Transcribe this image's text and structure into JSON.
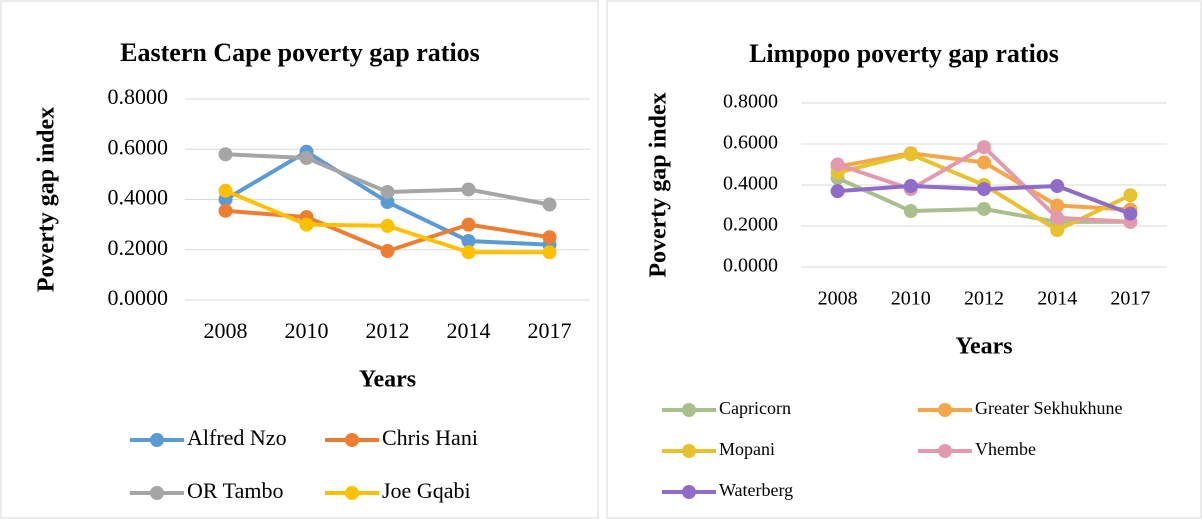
{
  "chart_data": [
    {
      "type": "line",
      "title": "Eastern Cape poverty gap ratios",
      "ylabel": "Poverty gap index",
      "xlabel": "Years",
      "categories": [
        "2008",
        "2010",
        "2012",
        "2014",
        "2017"
      ],
      "ylim": [
        0,
        0.8
      ],
      "yticks": [
        {
          "value": 0,
          "label": "0.0000"
        },
        {
          "value": 0.2,
          "label": "0.2000"
        },
        {
          "value": 0.4,
          "label": "0.4000"
        },
        {
          "value": 0.6,
          "label": "0.6000"
        },
        {
          "value": 0.8,
          "label": "0.8000"
        }
      ],
      "grid": true,
      "legend": "bottom",
      "series": [
        {
          "name": "Alfred Nzo",
          "color": "#5b9bd5",
          "values": [
            0.4,
            0.59,
            0.39,
            0.235,
            0.22
          ]
        },
        {
          "name": "Chris Hani",
          "color": "#ed7d31",
          "values": [
            0.355,
            0.33,
            0.195,
            0.3,
            0.25
          ]
        },
        {
          "name": "OR Tambo",
          "color": "#a5a5a5",
          "values": [
            0.58,
            0.565,
            0.43,
            0.44,
            0.38
          ]
        },
        {
          "name": "Joe Gqabi",
          "color": "#ffc000",
          "values": [
            0.435,
            0.3,
            0.295,
            0.19,
            0.19
          ]
        }
      ]
    },
    {
      "type": "line",
      "title": "Limpopo poverty gap ratios",
      "ylabel": "Poverty gap index",
      "xlabel": "Years",
      "categories": [
        "2008",
        "2010",
        "2012",
        "2014",
        "2017"
      ],
      "ylim": [
        0,
        0.8
      ],
      "yticks": [
        {
          "value": 0,
          "label": "0.0000"
        },
        {
          "value": 0.2,
          "label": "0.2000"
        },
        {
          "value": 0.4,
          "label": "0.4000"
        },
        {
          "value": 0.6,
          "label": "0.6000"
        },
        {
          "value": 0.8,
          "label": "0.8000"
        }
      ],
      "grid": true,
      "legend": "bottom",
      "series": [
        {
          "name": "Capricorn",
          "color": "#a9c08e",
          "values": [
            0.434,
            0.273,
            0.283,
            0.22,
            0.22
          ]
        },
        {
          "name": "Greater Sekhukhune",
          "color": "#f5a54a",
          "values": [
            0.49,
            0.555,
            0.51,
            0.3,
            0.28
          ]
        },
        {
          "name": "Mopani",
          "color": "#e8c12e",
          "values": [
            0.46,
            0.55,
            0.4,
            0.18,
            0.35
          ]
        },
        {
          "name": "Vhembe",
          "color": "#e39aaf",
          "values": [
            0.5,
            0.38,
            0.585,
            0.24,
            0.22
          ]
        },
        {
          "name": "Waterberg",
          "color": "#8e6cc8",
          "values": [
            0.37,
            0.395,
            0.38,
            0.395,
            0.26
          ]
        }
      ]
    }
  ]
}
